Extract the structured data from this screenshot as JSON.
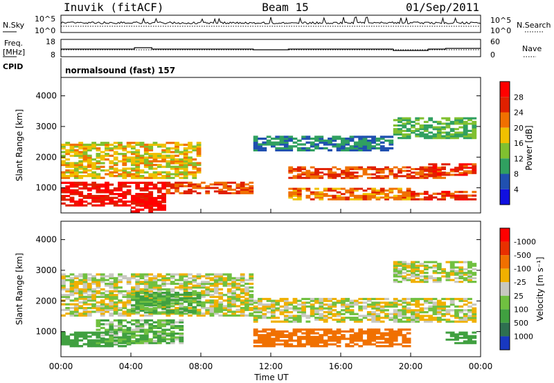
{
  "header": {
    "station": "Inuvik (fitACF)",
    "beam": "Beam 15",
    "date": "01/Sep/2011"
  },
  "strip_noise": {
    "left_label": "N.Sky",
    "right_label": "N.Search",
    "tick_top": "10^5",
    "tick_bottom": "10^0"
  },
  "strip_freq": {
    "left_label_1": "Freq.",
    "left_label_2": "[MHz]",
    "right_label": "Nave",
    "left_top": "18",
    "left_bottom": "8",
    "right_top": "60",
    "right_bottom": "0"
  },
  "cpid": {
    "label": "CPID",
    "value": "normalsound (fast) 157"
  },
  "x_axis": {
    "ticks": [
      "00:00",
      "04:00",
      "08:00",
      "12:00",
      "16:00",
      "20:00",
      "00:00"
    ],
    "label": "Time UT"
  },
  "panel_power": {
    "ylabel": "Slant Range [km]",
    "yticks": [
      "1000",
      "2000",
      "3000",
      "4000"
    ]
  },
  "panel_velocity": {
    "ylabel": "Slant Range [km]",
    "yticks": [
      "1000",
      "2000",
      "3000",
      "4000"
    ]
  },
  "colorbar_power": {
    "title": "Power [dB]",
    "labels": [
      "4",
      "8",
      "12",
      "16",
      "20",
      "24",
      "28"
    ],
    "colors": [
      "#1010e0",
      "#2050b0",
      "#30a060",
      "#80c030",
      "#f0c000",
      "#f07000",
      "#e02000",
      "#ff0000"
    ]
  },
  "colorbar_velocity": {
    "title": "Velocity [m s⁻¹]",
    "labels": [
      "1000",
      "500",
      "100",
      "25",
      "-25",
      "-100",
      "-500",
      "-1000"
    ],
    "colors": [
      "#1838c0",
      "#2e7050",
      "#40a040",
      "#70c040",
      "#c8c8c0",
      "#f0b000",
      "#f07000",
      "#e83000",
      "#ff0000"
    ]
  },
  "chart_data": [
    {
      "type": "heatmap",
      "title": "Power",
      "xlabel": "Time UT",
      "ylabel": "Slant Range [km]",
      "xlim": [
        "00:00",
        "24:00"
      ],
      "ylim": [
        180,
        4600
      ],
      "zlabel": "Power [dB]",
      "zlim": [
        0,
        32
      ],
      "bands": [
        {
          "t0": 0,
          "t1": 6,
          "r0": 400,
          "r1": 1200,
          "v": 28
        },
        {
          "t0": 4,
          "t1": 6,
          "r0": 200,
          "r1": 700,
          "v": 30
        },
        {
          "t0": 0,
          "t1": 8,
          "r0": 1300,
          "r1": 2500,
          "v": 18
        },
        {
          "t0": 6,
          "t1": 11,
          "r0": 800,
          "r1": 1200,
          "v": 24
        },
        {
          "t0": 13,
          "t1": 22,
          "r0": 1300,
          "r1": 1700,
          "v": 24
        },
        {
          "t0": 13,
          "t1": 20,
          "r0": 600,
          "r1": 1000,
          "v": 22
        },
        {
          "t0": 20,
          "t1": 24,
          "r0": 600,
          "r1": 900,
          "v": 26
        },
        {
          "t0": 21,
          "t1": 24,
          "r0": 1400,
          "r1": 1800,
          "v": 26
        },
        {
          "t0": 19,
          "t1": 24,
          "r0": 2600,
          "r1": 3300,
          "v": 12
        },
        {
          "t0": 11,
          "t1": 19,
          "r0": 2200,
          "r1": 2700,
          "v": 8
        }
      ]
    },
    {
      "type": "heatmap",
      "title": "Velocity",
      "xlabel": "Time UT",
      "ylabel": "Slant Range [km]",
      "xlim": [
        "00:00",
        "24:00"
      ],
      "ylim": [
        180,
        4600
      ],
      "zlabel": "Velocity [m s⁻¹]",
      "zlim": [
        -1000,
        1000
      ],
      "bands": [
        {
          "t0": 0,
          "t1": 4,
          "r0": 500,
          "r1": 1000,
          "v": 300
        },
        {
          "t0": 2,
          "t1": 7,
          "r0": 600,
          "r1": 1400,
          "v": 100
        },
        {
          "t0": 0,
          "t1": 11,
          "r0": 1500,
          "r1": 2900,
          "v": 0
        },
        {
          "t0": 4,
          "t1": 8,
          "r0": 1600,
          "r1": 2300,
          "v": 150
        },
        {
          "t0": 11,
          "t1": 20,
          "r0": 500,
          "r1": 1100,
          "v": -200
        },
        {
          "t0": 11,
          "t1": 24,
          "r0": 1300,
          "r1": 2100,
          "v": 0
        },
        {
          "t0": 19,
          "t1": 24,
          "r0": 2600,
          "r1": 3300,
          "v": 0
        },
        {
          "t0": 22,
          "t1": 24,
          "r0": 600,
          "r1": 1000,
          "v": 300
        }
      ]
    }
  ]
}
